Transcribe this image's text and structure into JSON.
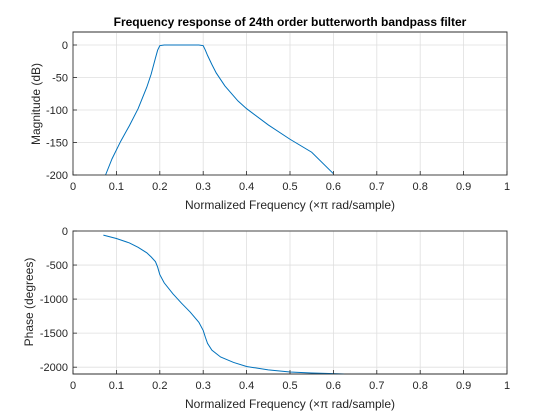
{
  "chart_data": [
    {
      "type": "line",
      "title": "Frequency response of 24th order butterworth bandpass filter",
      "xlabel": "Normalized Frequency  (×π rad/sample)",
      "ylabel": "Magnitude (dB)",
      "xlim": [
        0,
        1
      ],
      "ylim": [
        -200,
        20
      ],
      "xticks": [
        0,
        0.1,
        0.2,
        0.3,
        0.4,
        0.5,
        0.6,
        0.7,
        0.8,
        0.9,
        1
      ],
      "xtick_labels": [
        "0",
        "0.1",
        "0.2",
        "0.3",
        "0.4",
        "0.5",
        "0.6",
        "0.7",
        "0.8",
        "0.9",
        "1"
      ],
      "yticks": [
        0,
        -50,
        -100,
        -150,
        -200
      ],
      "ytick_labels": [
        "0",
        "-50",
        "-100",
        "-150",
        "-200"
      ],
      "grid": true,
      "color": "#0072BD",
      "series": [
        {
          "x": [
            0.075,
            0.09,
            0.11,
            0.13,
            0.15,
            0.17,
            0.18,
            0.19,
            0.195,
            0.2,
            0.21,
            0.25,
            0.29,
            0.3,
            0.305,
            0.31,
            0.32,
            0.33,
            0.35,
            0.38,
            0.4,
            0.45,
            0.5,
            0.55,
            0.6
          ],
          "y": [
            -200,
            -175,
            -148,
            -124,
            -98,
            -65,
            -45,
            -20,
            -8,
            -1,
            0,
            0,
            0,
            -1,
            -8,
            -16,
            -30,
            -43,
            -63,
            -86,
            -98,
            -123,
            -145,
            -165,
            -198
          ]
        }
      ]
    },
    {
      "type": "line",
      "xlabel": "Normalized Frequency  (×π rad/sample)",
      "ylabel": "Phase (degrees)",
      "xlim": [
        0,
        1
      ],
      "ylim": [
        -2100,
        0
      ],
      "xticks": [
        0,
        0.1,
        0.2,
        0.3,
        0.4,
        0.5,
        0.6,
        0.7,
        0.8,
        0.9,
        1
      ],
      "xtick_labels": [
        "0",
        "0.1",
        "0.2",
        "0.3",
        "0.4",
        "0.5",
        "0.6",
        "0.7",
        "0.8",
        "0.9",
        "1"
      ],
      "yticks": [
        0,
        -500,
        -1000,
        -1500,
        -2000
      ],
      "ytick_labels": [
        "0",
        "-500",
        "-1000",
        "-1500",
        "-2000"
      ],
      "grid": true,
      "color": "#0072BD",
      "series": [
        {
          "x": [
            0.07,
            0.1,
            0.13,
            0.15,
            0.17,
            0.18,
            0.19,
            0.195,
            0.2,
            0.21,
            0.23,
            0.25,
            0.27,
            0.29,
            0.3,
            0.305,
            0.31,
            0.32,
            0.34,
            0.37,
            0.4,
            0.45,
            0.5,
            0.55,
            0.6,
            0.625
          ],
          "y": [
            -60,
            -110,
            -175,
            -240,
            -320,
            -380,
            -450,
            -530,
            -640,
            -760,
            -920,
            -1060,
            -1190,
            -1340,
            -1460,
            -1560,
            -1650,
            -1750,
            -1850,
            -1930,
            -1990,
            -2040,
            -2070,
            -2085,
            -2095,
            -2100
          ]
        }
      ]
    }
  ]
}
